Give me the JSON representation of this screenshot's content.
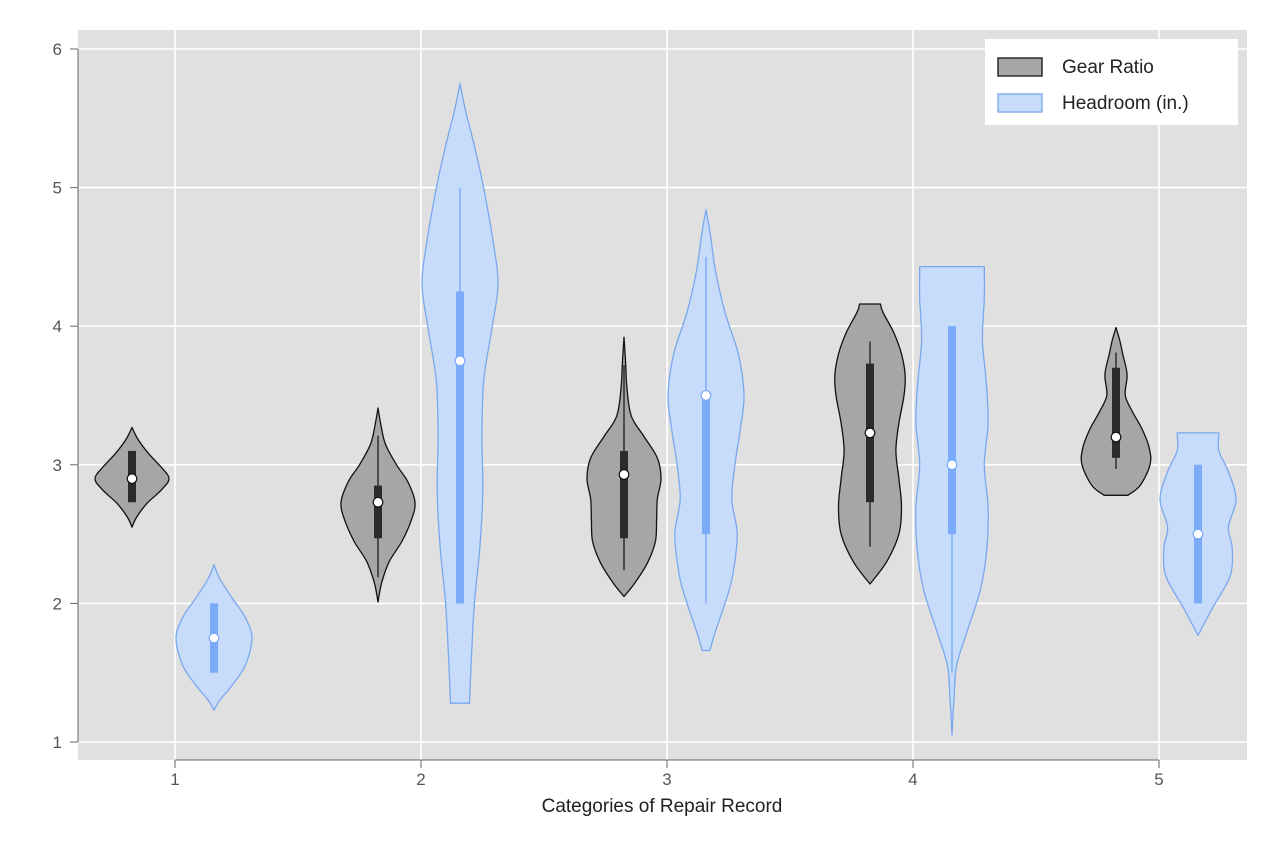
{
  "chart_data": {
    "type": "violin",
    "xlabel": "Categories of Repair Record",
    "ylabel": "",
    "ylim": [
      0.9,
      6.1
    ],
    "yticks": [
      1,
      2,
      3,
      4,
      5,
      6
    ],
    "categories": [
      "1",
      "2",
      "3",
      "4",
      "5"
    ],
    "grid": true,
    "legend_position": "top-right",
    "series": [
      {
        "name": "Gear Ratio",
        "fill": "#a6a6a6",
        "stroke": "#111111",
        "box_color": "#2b2b2b",
        "violins": [
          {
            "category": "1",
            "min": 2.55,
            "max": 3.27,
            "q1": 2.73,
            "median": 2.9,
            "q3": 3.1,
            "whisker_low": 2.73,
            "whisker_high": 3.1,
            "profile": [
              [
                2.55,
                0.0
              ],
              [
                2.62,
                0.12
              ],
              [
                2.72,
                0.4
              ],
              [
                2.82,
                0.8
              ],
              [
                2.9,
                1.0
              ],
              [
                2.98,
                0.8
              ],
              [
                3.08,
                0.45
              ],
              [
                3.18,
                0.17
              ],
              [
                3.27,
                0.0
              ]
            ]
          },
          {
            "category": "2",
            "min": 2.01,
            "max": 3.41,
            "q1": 2.47,
            "median": 2.73,
            "q3": 2.85,
            "whisker_low": 2.19,
            "whisker_high": 3.21,
            "profile": [
              [
                2.01,
                0.0
              ],
              [
                2.15,
                0.1
              ],
              [
                2.3,
                0.3
              ],
              [
                2.45,
                0.65
              ],
              [
                2.6,
                0.9
              ],
              [
                2.73,
                1.0
              ],
              [
                2.88,
                0.8
              ],
              [
                3.0,
                0.5
              ],
              [
                3.15,
                0.2
              ],
              [
                3.3,
                0.07
              ],
              [
                3.41,
                0.0
              ]
            ]
          },
          {
            "category": "3",
            "min": 2.05,
            "max": 3.92,
            "q1": 2.47,
            "median": 2.93,
            "q3": 3.1,
            "whisker_low": 2.24,
            "whisker_high": 3.72,
            "profile": [
              [
                2.05,
                0.0
              ],
              [
                2.15,
                0.3
              ],
              [
                2.3,
                0.65
              ],
              [
                2.45,
                0.85
              ],
              [
                2.6,
                0.88
              ],
              [
                2.75,
                0.9
              ],
              [
                2.9,
                1.0
              ],
              [
                3.05,
                0.9
              ],
              [
                3.2,
                0.55
              ],
              [
                3.35,
                0.2
              ],
              [
                3.55,
                0.08
              ],
              [
                3.75,
                0.04
              ],
              [
                3.92,
                0.0
              ]
            ]
          },
          {
            "category": "4",
            "min": 2.14,
            "max": 4.16,
            "q1": 2.73,
            "median": 3.23,
            "q3": 3.73,
            "whisker_low": 2.41,
            "whisker_high": 3.89,
            "profile": [
              [
                2.14,
                0.0
              ],
              [
                2.3,
                0.45
              ],
              [
                2.5,
                0.78
              ],
              [
                2.7,
                0.85
              ],
              [
                2.9,
                0.78
              ],
              [
                3.1,
                0.7
              ],
              [
                3.3,
                0.78
              ],
              [
                3.5,
                0.92
              ],
              [
                3.65,
                0.95
              ],
              [
                3.8,
                0.85
              ],
              [
                3.95,
                0.65
              ],
              [
                4.1,
                0.35
              ],
              [
                4.16,
                0.28
              ]
            ]
          },
          {
            "category": "5",
            "min": 2.78,
            "max": 3.99,
            "q1": 3.05,
            "median": 3.2,
            "q3": 3.7,
            "whisker_low": 2.97,
            "whisker_high": 3.81,
            "profile": [
              [
                2.78,
                0.32
              ],
              [
                2.85,
                0.65
              ],
              [
                3.0,
                0.92
              ],
              [
                3.12,
                0.9
              ],
              [
                3.25,
                0.72
              ],
              [
                3.38,
                0.45
              ],
              [
                3.5,
                0.25
              ],
              [
                3.65,
                0.3
              ],
              [
                3.8,
                0.18
              ],
              [
                3.9,
                0.1
              ],
              [
                3.99,
                0.0
              ]
            ]
          }
        ]
      },
      {
        "name": "Headroom (in.)",
        "fill": "#c7dbfb",
        "stroke": "#7aa8ee",
        "box_color": "#7aaaf8",
        "violins": [
          {
            "category": "1",
            "min": 1.23,
            "max": 2.28,
            "q1": 1.5,
            "median": 1.75,
            "q3": 2.0,
            "whisker_low": 1.5,
            "whisker_high": 2.0,
            "profile": [
              [
                1.23,
                0.0
              ],
              [
                1.3,
                0.15
              ],
              [
                1.4,
                0.45
              ],
              [
                1.55,
                0.82
              ],
              [
                1.75,
                1.0
              ],
              [
                1.9,
                0.82
              ],
              [
                2.05,
                0.45
              ],
              [
                2.18,
                0.15
              ],
              [
                2.28,
                0.0
              ]
            ]
          },
          {
            "category": "2",
            "min": 1.28,
            "max": 5.75,
            "q1": 2.0,
            "median": 3.75,
            "q3": 4.25,
            "whisker_low": 2.0,
            "whisker_high": 5.0,
            "profile": [
              [
                1.28,
                0.25
              ],
              [
                1.6,
                0.3
              ],
              [
                2.0,
                0.38
              ],
              [
                2.4,
                0.52
              ],
              [
                2.8,
                0.6
              ],
              [
                3.2,
                0.58
              ],
              [
                3.6,
                0.62
              ],
              [
                4.0,
                0.85
              ],
              [
                4.3,
                1.0
              ],
              [
                4.6,
                0.88
              ],
              [
                5.0,
                0.62
              ],
              [
                5.3,
                0.38
              ],
              [
                5.55,
                0.15
              ],
              [
                5.75,
                0.0
              ]
            ]
          },
          {
            "category": "3",
            "min": 1.66,
            "max": 4.84,
            "q1": 2.5,
            "median": 3.5,
            "q3": 3.5,
            "whisker_low": 2.0,
            "whisker_high": 4.5,
            "profile": [
              [
                1.66,
                0.1
              ],
              [
                1.8,
                0.25
              ],
              [
                2.0,
                0.5
              ],
              [
                2.2,
                0.7
              ],
              [
                2.5,
                0.82
              ],
              [
                2.75,
                0.68
              ],
              [
                3.0,
                0.76
              ],
              [
                3.25,
                0.9
              ],
              [
                3.5,
                1.0
              ],
              [
                3.8,
                0.85
              ],
              [
                4.1,
                0.5
              ],
              [
                4.4,
                0.25
              ],
              [
                4.65,
                0.12
              ],
              [
                4.84,
                0.0
              ]
            ]
          },
          {
            "category": "4",
            "min": 1.05,
            "max": 4.43,
            "q1": 2.5,
            "median": 3.0,
            "q3": 4.0,
            "whisker_low": 1.5,
            "whisker_high": 4.0,
            "profile": [
              [
                1.05,
                0.0
              ],
              [
                1.3,
                0.05
              ],
              [
                1.55,
                0.12
              ],
              [
                1.8,
                0.4
              ],
              [
                2.1,
                0.75
              ],
              [
                2.4,
                0.92
              ],
              [
                2.7,
                0.95
              ],
              [
                3.0,
                0.85
              ],
              [
                3.3,
                0.95
              ],
              [
                3.6,
                0.9
              ],
              [
                3.9,
                0.8
              ],
              [
                4.2,
                0.85
              ],
              [
                4.43,
                0.85
              ]
            ]
          },
          {
            "category": "5",
            "min": 1.77,
            "max": 3.23,
            "q1": 2.0,
            "median": 2.5,
            "q3": 3.0,
            "whisker_low": 2.0,
            "whisker_high": 3.0,
            "profile": [
              [
                1.77,
                0.0
              ],
              [
                1.9,
                0.25
              ],
              [
                2.0,
                0.45
              ],
              [
                2.2,
                0.85
              ],
              [
                2.4,
                0.9
              ],
              [
                2.55,
                0.8
              ],
              [
                2.75,
                1.0
              ],
              [
                2.95,
                0.8
              ],
              [
                3.1,
                0.55
              ],
              [
                3.23,
                0.55
              ]
            ]
          }
        ]
      }
    ]
  }
}
